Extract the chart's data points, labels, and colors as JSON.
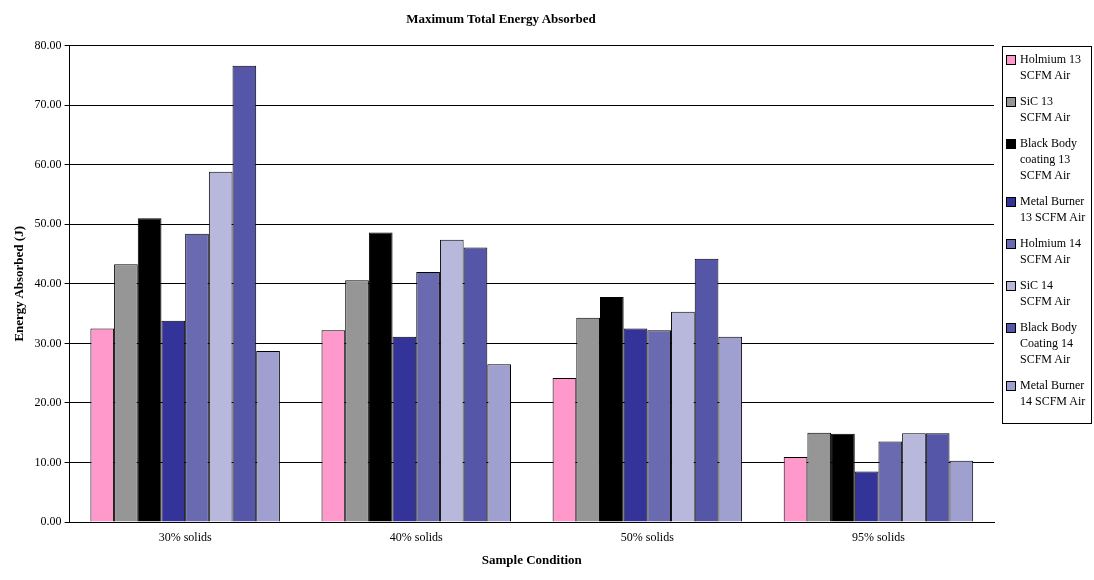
{
  "chart_data": {
    "type": "bar",
    "title": "Maximum Total Energy Absorbed",
    "xlabel": "Sample Condition",
    "ylabel": "Energy Absorbed (J)",
    "categories": [
      "30% solids",
      "40% solids",
      "50% solids",
      "95% solids"
    ],
    "series": [
      {
        "name": "Holmium 13 SCFM Air",
        "color": "#ff99cc",
        "values": [
          32.5,
          32.2,
          24.2,
          10.9
        ]
      },
      {
        "name": "SiC 13 SCFM Air",
        "color": "#969696",
        "values": [
          43.3,
          40.6,
          34.3,
          15.0
        ]
      },
      {
        "name": "Black Body coating 13 SCFM Air",
        "color": "#000000",
        "values": [
          51.0,
          48.6,
          37.8,
          14.8
        ]
      },
      {
        "name": "Metal Burner 13 SCFM Air",
        "color": "#333399",
        "values": [
          33.8,
          31.1,
          32.5,
          8.5
        ]
      },
      {
        "name": "Holmium 14 SCFM Air",
        "color": "#6a6ab0",
        "values": [
          48.4,
          42.0,
          32.2,
          13.5
        ]
      },
      {
        "name": "SiC 14 SCFM Air",
        "color": "#b8b8dc",
        "values": [
          58.8,
          47.4,
          35.3,
          14.9
        ]
      },
      {
        "name": "Black Body Coating 14 SCFM Air",
        "color": "#5656a8",
        "values": [
          76.6,
          46.1,
          44.2,
          14.9
        ]
      },
      {
        "name": "Metal Burner 14 SCFM Air",
        "color": "#a0a0d0",
        "values": [
          28.7,
          26.5,
          31.1,
          10.3
        ]
      }
    ],
    "ylim": [
      0,
      80
    ],
    "yticks": [
      {
        "value": 0,
        "label": "0.00"
      },
      {
        "value": 10,
        "label": "10.00"
      },
      {
        "value": 20,
        "label": "20.00"
      },
      {
        "value": 30,
        "label": "30.00"
      },
      {
        "value": 40,
        "label": "40.00"
      },
      {
        "value": 50,
        "label": "50.00"
      },
      {
        "value": 60,
        "label": "60.00"
      },
      {
        "value": 70,
        "label": "70.00"
      },
      {
        "value": 80,
        "label": "80.00"
      }
    ],
    "grid": "y",
    "legend": "right"
  }
}
